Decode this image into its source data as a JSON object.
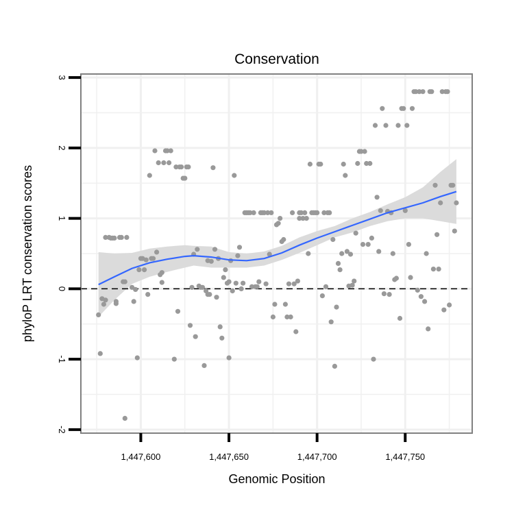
{
  "chart_data": {
    "type": "scatter",
    "title": "Conservation",
    "xlabel": "Genomic Position",
    "ylabel": "phyloP LRT conservation scores",
    "xlim": [
      1447566,
      1447788
    ],
    "ylim": [
      -2.05,
      3.05
    ],
    "x_ticks": [
      1447600,
      1447650,
      1447700,
      1447750
    ],
    "x_tick_labels": [
      "1,447,600",
      "1,447,650",
      "1,447,700",
      "1,447,750"
    ],
    "y_ticks": [
      -2,
      -1,
      0,
      1,
      2,
      3
    ],
    "y_tick_labels": [
      "-2",
      "-1",
      "0",
      "1",
      "2",
      "3"
    ],
    "reference_line": {
      "y": 0,
      "style": "dashed"
    },
    "grid": true,
    "colors": {
      "points": "#999999",
      "smooth": "#3366ff",
      "ribbon": "#d9d9d9",
      "grid": "#f0f0f0",
      "frame": "#808080"
    },
    "points": [
      [
        1447576,
        -0.37
      ],
      [
        1447577,
        -0.92
      ],
      [
        1447578,
        -0.14
      ],
      [
        1447579,
        -0.22
      ],
      [
        1447580,
        -0.16
      ],
      [
        1447580,
        0.73
      ],
      [
        1447582,
        0.73
      ],
      [
        1447583,
        0.72
      ],
      [
        1447584,
        0.72
      ],
      [
        1447585,
        0.72
      ],
      [
        1447586,
        -0.21
      ],
      [
        1447586,
        -0.18
      ],
      [
        1447588,
        0.73
      ],
      [
        1447589,
        0.73
      ],
      [
        1447590,
        0.1
      ],
      [
        1447591,
        -1.84
      ],
      [
        1447591,
        0.1
      ],
      [
        1447592,
        0.73
      ],
      [
        1447595,
        0.02
      ],
      [
        1447596,
        -0.18
      ],
      [
        1447597,
        -0.01
      ],
      [
        1447598,
        -0.98
      ],
      [
        1447599,
        0.27
      ],
      [
        1447600,
        0.43
      ],
      [
        1447601,
        0.43
      ],
      [
        1447602,
        0.27
      ],
      [
        1447603,
        0.41
      ],
      [
        1447604,
        -0.08
      ],
      [
        1447605,
        1.61
      ],
      [
        1447606,
        0.43
      ],
      [
        1447607,
        0.43
      ],
      [
        1447608,
        1.96
      ],
      [
        1447609,
        0.52
      ],
      [
        1447610,
        1.79
      ],
      [
        1447611,
        0.2
      ],
      [
        1447612,
        0.09
      ],
      [
        1447612,
        0.23
      ],
      [
        1447613,
        1.79
      ],
      [
        1447614,
        1.96
      ],
      [
        1447615,
        1.96
      ],
      [
        1447616,
        1.79
      ],
      [
        1447617,
        1.96
      ],
      [
        1447619,
        -1.0
      ],
      [
        1447620,
        1.73
      ],
      [
        1447621,
        -0.32
      ],
      [
        1447622,
        1.73
      ],
      [
        1447623,
        1.73
      ],
      [
        1447624,
        1.57
      ],
      [
        1447625,
        1.57
      ],
      [
        1447626,
        1.73
      ],
      [
        1447627,
        1.73
      ],
      [
        1447628,
        -0.52
      ],
      [
        1447629,
        0.02
      ],
      [
        1447630,
        0.49
      ],
      [
        1447631,
        -0.68
      ],
      [
        1447632,
        0.56
      ],
      [
        1447633,
        0.04
      ],
      [
        1447634,
        0.02
      ],
      [
        1447635,
        0.02
      ],
      [
        1447636,
        -1.09
      ],
      [
        1447637,
        -0.03
      ],
      [
        1447638,
        -0.08
      ],
      [
        1447638,
        0.4
      ],
      [
        1447639,
        -0.08
      ],
      [
        1447640,
        0.39
      ],
      [
        1447641,
        1.72
      ],
      [
        1447642,
        0.56
      ],
      [
        1447643,
        -0.12
      ],
      [
        1447644,
        0.43
      ],
      [
        1447645,
        -0.54
      ],
      [
        1447646,
        -0.7
      ],
      [
        1447647,
        0.16
      ],
      [
        1447648,
        0.27
      ],
      [
        1447649,
        0.08
      ],
      [
        1447650,
        -0.98
      ],
      [
        1447650,
        0.1
      ],
      [
        1447651,
        0.4
      ],
      [
        1447652,
        -0.03
      ],
      [
        1447653,
        1.61
      ],
      [
        1447654,
        0.08
      ],
      [
        1447655,
        0.47
      ],
      [
        1447656,
        0.59
      ],
      [
        1447657,
        0.0
      ],
      [
        1447658,
        0.08
      ],
      [
        1447659,
        1.08
      ],
      [
        1447660,
        1.08
      ],
      [
        1447661,
        1.08
      ],
      [
        1447662,
        1.08
      ],
      [
        1447663,
        0.03
      ],
      [
        1447664,
        1.08
      ],
      [
        1447665,
        0.03
      ],
      [
        1447666,
        0.03
      ],
      [
        1447667,
        0.1
      ],
      [
        1447668,
        1.08
      ],
      [
        1447669,
        1.08
      ],
      [
        1447670,
        1.08
      ],
      [
        1447671,
        0.07
      ],
      [
        1447672,
        1.08
      ],
      [
        1447673,
        0.49
      ],
      [
        1447674,
        1.08
      ],
      [
        1447675,
        -0.4
      ],
      [
        1447676,
        -0.22
      ],
      [
        1447677,
        0.91
      ],
      [
        1447678,
        0.93
      ],
      [
        1447679,
        1.0
      ],
      [
        1447680,
        0.67
      ],
      [
        1447681,
        0.7
      ],
      [
        1447682,
        -0.22
      ],
      [
        1447683,
        -0.4
      ],
      [
        1447684,
        0.07
      ],
      [
        1447685,
        -0.4
      ],
      [
        1447686,
        1.08
      ],
      [
        1447687,
        0.07
      ],
      [
        1447688,
        -0.61
      ],
      [
        1447689,
        0.11
      ],
      [
        1447690,
        1.0
      ],
      [
        1447690,
        1.08
      ],
      [
        1447691,
        1.08
      ],
      [
        1447692,
        1.0
      ],
      [
        1447693,
        1.08
      ],
      [
        1447694,
        1.0
      ],
      [
        1447695,
        0.5
      ],
      [
        1447696,
        1.77
      ],
      [
        1447697,
        1.08
      ],
      [
        1447698,
        1.08
      ],
      [
        1447699,
        1.08
      ],
      [
        1447700,
        1.08
      ],
      [
        1447701,
        1.77
      ],
      [
        1447702,
        1.77
      ],
      [
        1447703,
        -0.1
      ],
      [
        1447704,
        1.08
      ],
      [
        1447705,
        0.03
      ],
      [
        1447706,
        1.08
      ],
      [
        1447707,
        1.08
      ],
      [
        1447708,
        -0.47
      ],
      [
        1447709,
        0.7
      ],
      [
        1447710,
        -1.1
      ],
      [
        1447711,
        -0.26
      ],
      [
        1447712,
        0.36
      ],
      [
        1447713,
        0.27
      ],
      [
        1447714,
        0.5
      ],
      [
        1447715,
        1.77
      ],
      [
        1447716,
        1.61
      ],
      [
        1447717,
        0.53
      ],
      [
        1447718,
        0.04
      ],
      [
        1447719,
        0.49
      ],
      [
        1447720,
        0.05
      ],
      [
        1447721,
        0.11
      ],
      [
        1447722,
        0.79
      ],
      [
        1447723,
        1.78
      ],
      [
        1447724,
        1.95
      ],
      [
        1447725,
        1.95
      ],
      [
        1447726,
        0.63
      ],
      [
        1447727,
        1.95
      ],
      [
        1447728,
        1.78
      ],
      [
        1447729,
        0.63
      ],
      [
        1447730,
        1.78
      ],
      [
        1447731,
        0.72
      ],
      [
        1447732,
        -1.0
      ],
      [
        1447733,
        2.32
      ],
      [
        1447734,
        1.3
      ],
      [
        1447735,
        0.53
      ],
      [
        1447736,
        1.11
      ],
      [
        1447737,
        2.56
      ],
      [
        1447738,
        -0.07
      ],
      [
        1447739,
        2.32
      ],
      [
        1447740,
        1.1
      ],
      [
        1447741,
        -0.08
      ],
      [
        1447742,
        1.08
      ],
      [
        1447743,
        0.5
      ],
      [
        1447744,
        0.13
      ],
      [
        1447745,
        0.15
      ],
      [
        1447746,
        2.32
      ],
      [
        1447747,
        -0.42
      ],
      [
        1447748,
        2.56
      ],
      [
        1447749,
        2.56
      ],
      [
        1447750,
        1.11
      ],
      [
        1447751,
        2.32
      ],
      [
        1447752,
        0.63
      ],
      [
        1447753,
        0.16
      ],
      [
        1447754,
        2.56
      ],
      [
        1447755,
        2.8
      ],
      [
        1447756,
        2.8
      ],
      [
        1447757,
        -0.02
      ],
      [
        1447758,
        2.8
      ],
      [
        1447759,
        -0.11
      ],
      [
        1447760,
        2.8
      ],
      [
        1447761,
        -0.18
      ],
      [
        1447762,
        0.5
      ],
      [
        1447763,
        -0.57
      ],
      [
        1447764,
        2.8
      ],
      [
        1447765,
        2.8
      ],
      [
        1447766,
        0.28
      ],
      [
        1447767,
        1.47
      ],
      [
        1447768,
        0.77
      ],
      [
        1447769,
        0.28
      ],
      [
        1447770,
        1.22
      ],
      [
        1447771,
        2.8
      ],
      [
        1447772,
        -0.3
      ],
      [
        1447773,
        2.8
      ],
      [
        1447774,
        2.8
      ],
      [
        1447775,
        -0.23
      ],
      [
        1447776,
        1.47
      ],
      [
        1447777,
        1.47
      ],
      [
        1447778,
        0.82
      ],
      [
        1447779,
        1.22
      ]
    ],
    "smooth": {
      "x": [
        1447576,
        1447585,
        1447595,
        1447605,
        1447615,
        1447625,
        1447630,
        1447640,
        1447650,
        1447660,
        1447670,
        1447680,
        1447690,
        1447700,
        1447710,
        1447720,
        1447730,
        1447740,
        1447750,
        1447760,
        1447770,
        1447779
      ],
      "y": [
        0.06,
        0.17,
        0.29,
        0.37,
        0.42,
        0.46,
        0.47,
        0.45,
        0.41,
        0.4,
        0.43,
        0.51,
        0.62,
        0.72,
        0.81,
        0.9,
        0.99,
        1.08,
        1.15,
        1.22,
        1.31,
        1.38
      ],
      "lower": [
        -0.4,
        -0.16,
        0.07,
        0.17,
        0.24,
        0.3,
        0.33,
        0.3,
        0.3,
        0.3,
        0.33,
        0.41,
        0.51,
        0.62,
        0.73,
        0.8,
        0.89,
        0.96,
        1.0,
        1.0,
        0.96,
        0.92
      ],
      "upper": [
        0.52,
        0.5,
        0.51,
        0.57,
        0.6,
        0.62,
        0.61,
        0.6,
        0.52,
        0.5,
        0.53,
        0.61,
        0.73,
        0.82,
        0.89,
        1.0,
        1.09,
        1.2,
        1.3,
        1.44,
        1.66,
        1.84
      ]
    }
  }
}
